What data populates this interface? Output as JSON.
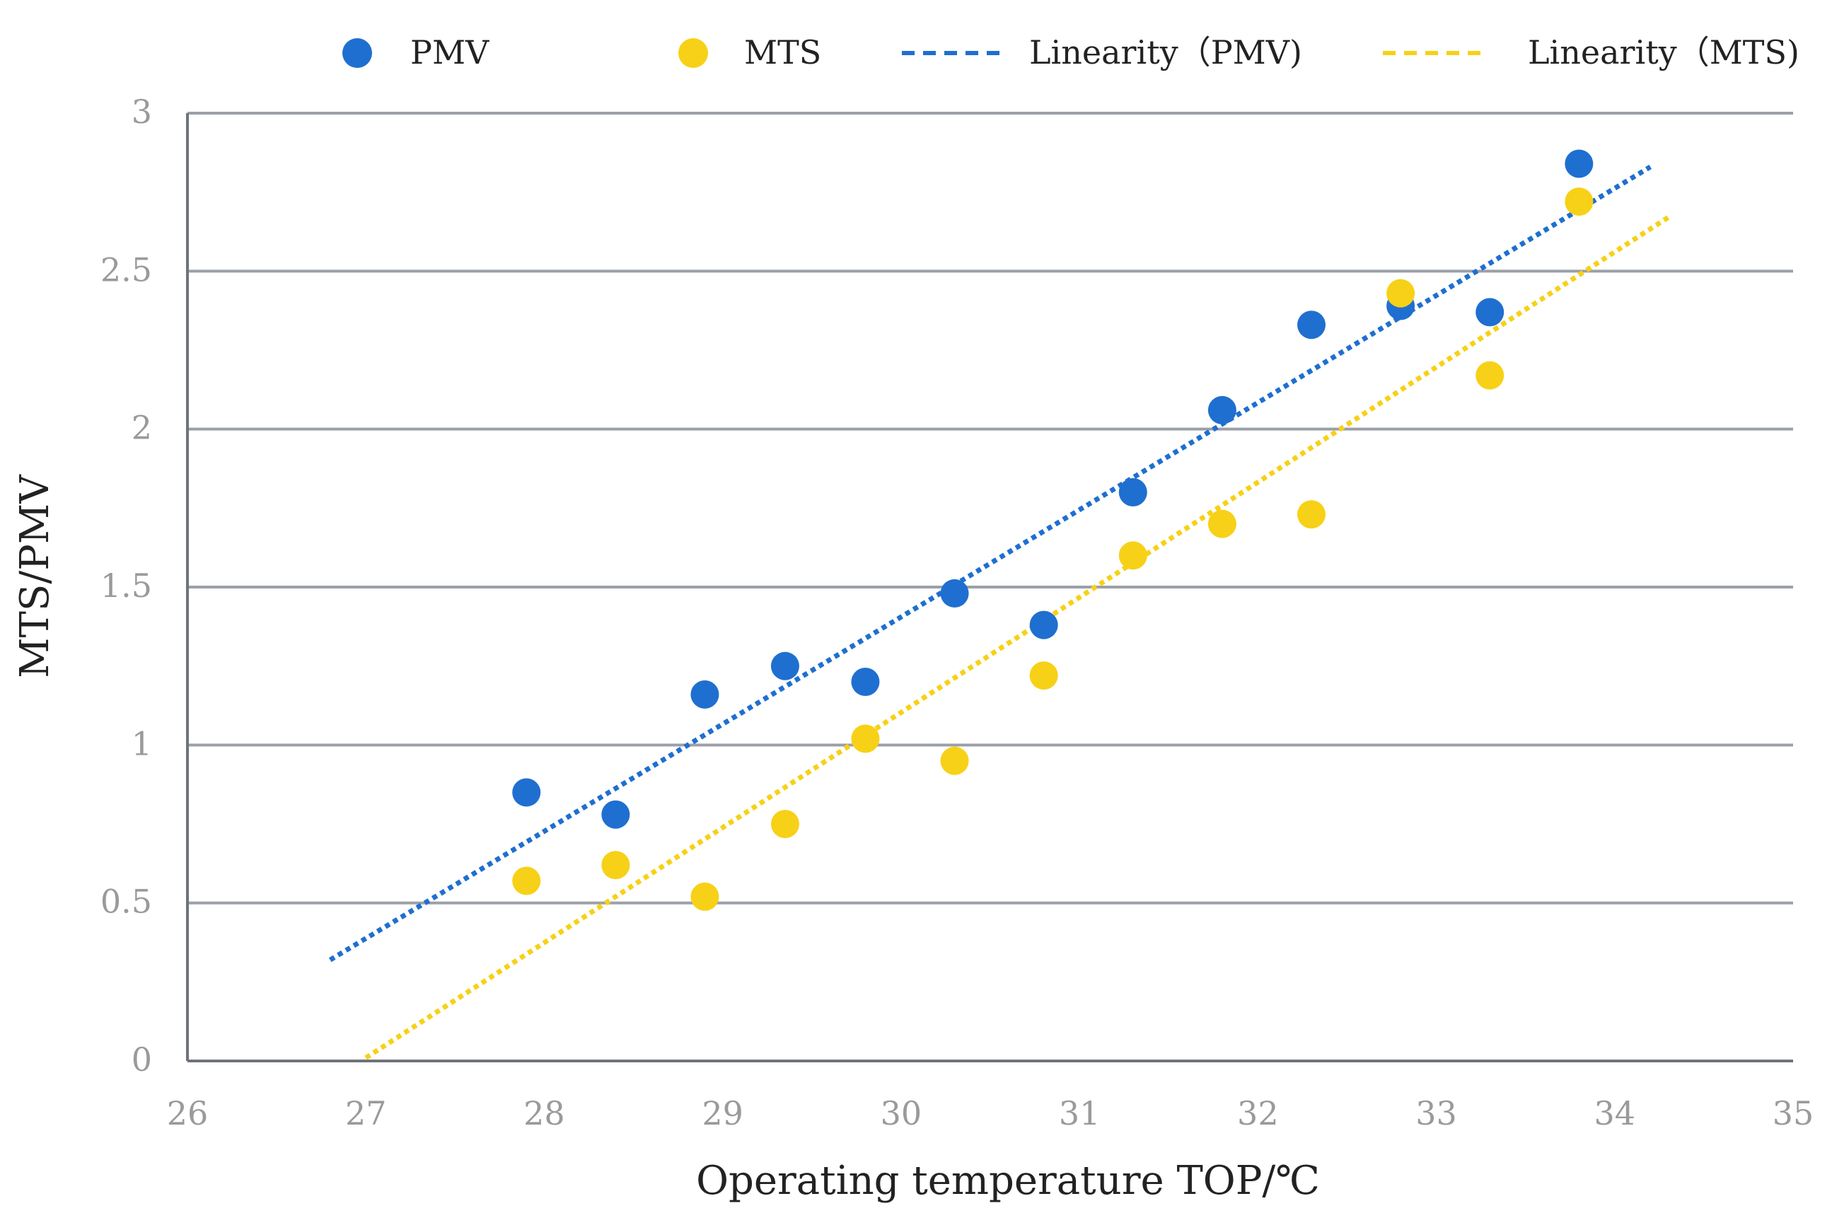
{
  "chart_data": {
    "type": "scatter",
    "title": "",
    "xlabel": "Operating temperature TOP/℃",
    "ylabel": "MTS/PMV",
    "xlim": [
      26,
      35
    ],
    "ylim": [
      0,
      3
    ],
    "xticks": [
      26,
      27,
      28,
      29,
      30,
      31,
      32,
      33,
      34,
      35
    ],
    "yticks": [
      0,
      0.5,
      1,
      1.5,
      2,
      2.5,
      3
    ],
    "grid": "horizontal",
    "legend_position": "top",
    "series": [
      {
        "name": "PMV",
        "kind": "points",
        "color": "#1f6fd0",
        "x": [
          27.9,
          28.4,
          28.9,
          29.35,
          29.8,
          30.3,
          30.8,
          31.3,
          31.8,
          32.3,
          32.8,
          33.3,
          33.8
        ],
        "y": [
          0.85,
          0.78,
          1.16,
          1.25,
          1.2,
          1.48,
          1.38,
          1.8,
          2.06,
          2.33,
          2.39,
          2.37,
          2.84
        ]
      },
      {
        "name": "MTS",
        "kind": "points",
        "color": "#f7d117",
        "x": [
          27.9,
          28.4,
          28.9,
          29.35,
          29.8,
          30.3,
          30.8,
          31.3,
          31.8,
          32.3,
          32.8,
          33.3,
          33.8
        ],
        "y": [
          0.57,
          0.62,
          0.52,
          0.75,
          1.02,
          0.95,
          1.22,
          1.6,
          1.7,
          1.73,
          2.43,
          2.17,
          2.72
        ]
      },
      {
        "name": "Linearity（PMV)",
        "kind": "trendline",
        "color": "#1f6fd0",
        "x": [
          26.8,
          34.2
        ],
        "y": [
          0.32,
          2.83
        ]
      },
      {
        "name": "Linearity（MTS)",
        "kind": "trendline",
        "color": "#f7d117",
        "x": [
          27.0,
          34.3
        ],
        "y": [
          0.01,
          2.67
        ]
      }
    ]
  }
}
